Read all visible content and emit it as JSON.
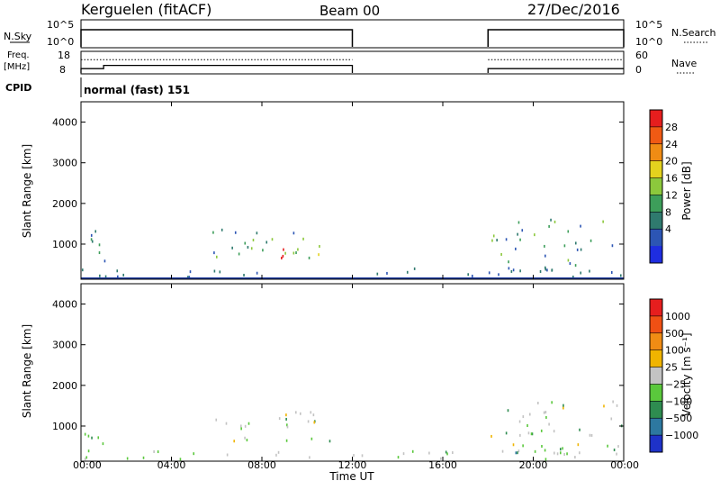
{
  "header": {
    "station": "Kerguelen (fitACF)",
    "beam": "Beam 00",
    "date": "27/Dec/2016"
  },
  "panels": {
    "nsky_label": "N.Sky",
    "nsearch_label": "N.Search",
    "nsky_ticks": [
      "10^5",
      "10^0"
    ],
    "nsearch_ticks": [
      "10^5",
      "10^0"
    ],
    "freq_label": "Freq.",
    "freq_unit": "[MHz]",
    "freq_ticks": [
      "18",
      "8"
    ],
    "nave_label": "Nave",
    "nave_ticks": [
      "60",
      "0"
    ],
    "cpid_label": "CPID",
    "cpid_value": "normal (fast) 151"
  },
  "chart_data": [
    {
      "type": "line",
      "name": "nsky-nsearch",
      "x_range_hours": [
        0,
        24
      ],
      "segments": [
        {
          "start": "00:00",
          "end": "12:00",
          "level": "10^5"
        },
        {
          "start": "18:00",
          "end": "24:00",
          "level": "10^5"
        }
      ]
    },
    {
      "type": "line",
      "name": "freq-nave",
      "segments": [
        {
          "series": "freq",
          "start": "00:00",
          "end": "01:00",
          "value_mhz": 10
        },
        {
          "series": "freq",
          "start": "01:00",
          "end": "12:00",
          "value_mhz": 11.5
        },
        {
          "series": "freq",
          "start": "18:00",
          "end": "24:00",
          "value_mhz": 10
        },
        {
          "series": "nave",
          "start": "00:00",
          "end": "12:00",
          "value": 37
        },
        {
          "series": "nave",
          "start": "18:00",
          "end": "24:00",
          "value": 37
        }
      ]
    },
    {
      "type": "heatmap",
      "ylabel": "Slant Range [km]",
      "yticks": [
        "4000",
        "3000",
        "2000",
        "1000"
      ],
      "ylim": [
        180,
        4500
      ],
      "colorbar": {
        "label": "Power [dB]",
        "ticks": [
          "28",
          "24",
          "20",
          "16",
          "12",
          "8",
          "4"
        ],
        "colors": [
          "#1e2de0",
          "#2c55b4",
          "#2f7a6e",
          "#3d9e5a",
          "#8cc83c",
          "#e4d21e",
          "#f08c14",
          "#f05a14",
          "#e61e1e"
        ]
      },
      "echo_regions": [
        {
          "t0": 0.1,
          "t1": 1.1,
          "r0": 250,
          "r1": 1400,
          "level": 0.35
        },
        {
          "t0": 5.8,
          "t1": 11.0,
          "r0": 600,
          "r1": 1350,
          "level": 0.5
        },
        {
          "t0": 8.5,
          "t1": 10.2,
          "r0": 500,
          "r1": 1000,
          "level": 0.85
        },
        {
          "t0": 18.1,
          "t1": 23.9,
          "r0": 300,
          "r1": 1600,
          "level": 0.45
        },
        {
          "t0": 0.0,
          "t1": 24.0,
          "r0": 180,
          "r1": 400,
          "level": 0.3
        }
      ]
    },
    {
      "type": "heatmap",
      "xlabel": "Time UT",
      "xticks": [
        "00:00",
        "04:00",
        "08:00",
        "12:00",
        "16:00",
        "20:00",
        "00:00"
      ],
      "xlim_hours": [
        0,
        24
      ],
      "ylabel": "Slant Range [km]",
      "yticks": [
        "4000",
        "3000",
        "2000",
        "1000"
      ],
      "ylim": [
        180,
        4500
      ],
      "colorbar": {
        "label": "Velocity [m s⁻¹]",
        "ticks": [
          "1000",
          "500",
          "100",
          "25",
          "−25",
          "−100",
          "−500",
          "−1000"
        ],
        "colors": [
          "#1e32c8",
          "#2d78a0",
          "#2e8c50",
          "#5ac83c",
          "#c3c3c3",
          "#f0b400",
          "#f08c14",
          "#f05014",
          "#e61e1e"
        ]
      },
      "echo_regions": [
        {
          "t0": 0.1,
          "t1": 1.1,
          "r0": 250,
          "r1": 1400,
          "level": 0.5
        },
        {
          "t0": 5.8,
          "t1": 11.0,
          "r0": 600,
          "r1": 1350,
          "level": 0.45
        },
        {
          "t0": 18.1,
          "t1": 23.9,
          "r0": 300,
          "r1": 1600,
          "level": 0.5
        },
        {
          "t0": 19.0,
          "t1": 21.5,
          "r0": 300,
          "r1": 700,
          "level": 0.8
        },
        {
          "t0": 0.0,
          "t1": 24.0,
          "r0": 180,
          "r1": 400,
          "level": 0.35
        }
      ]
    }
  ]
}
